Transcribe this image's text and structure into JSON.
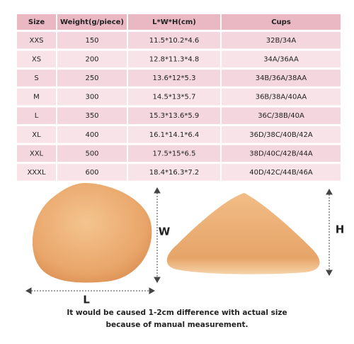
{
  "table": {
    "headers": [
      "Size",
      "Weight(g/piece)",
      "L*W*H(cm)",
      "Cups"
    ],
    "rows": [
      [
        "XXS",
        "150",
        "11.5*10.2*4.6",
        "32B/34A"
      ],
      [
        "XS",
        "200",
        "12.8*11.3*4.8",
        "34A/36AA"
      ],
      [
        "S",
        "250",
        "13.6*12*5.3",
        "34B/36A/38AA"
      ],
      [
        "M",
        "300",
        "14.5*13*5.7",
        "36B/38A/40AA"
      ],
      [
        "L",
        "350",
        "15.3*13.6*5.9",
        "36C/38B/40A"
      ],
      [
        "XL",
        "400",
        "16.1*14.1*6.4",
        "36D/38C/40B/42A"
      ],
      [
        "XXL",
        "500",
        "17.5*15*6.5",
        "38D/40C/42B/44A"
      ],
      [
        "XXXL",
        "600",
        "18.4*16.3*7.2",
        "40D/42C/44B/46A"
      ]
    ]
  },
  "dimensions": {
    "width": "W",
    "length": "L",
    "height": "H"
  },
  "note": [
    "It would be caused 1-2cm difference with actual size",
    "because of manual measurement."
  ]
}
